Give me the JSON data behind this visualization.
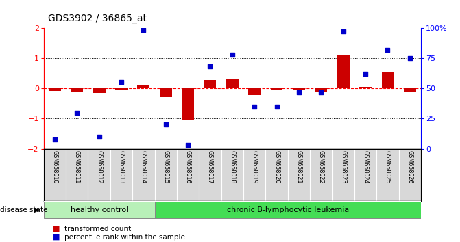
{
  "title": "GDS3902 / 36865_at",
  "samples": [
    "GSM658010",
    "GSM658011",
    "GSM658012",
    "GSM658013",
    "GSM658014",
    "GSM658015",
    "GSM658016",
    "GSM658017",
    "GSM658018",
    "GSM658019",
    "GSM658020",
    "GSM658021",
    "GSM658022",
    "GSM658023",
    "GSM658024",
    "GSM658025",
    "GSM658026"
  ],
  "transformed_count": [
    -0.08,
    -0.13,
    -0.15,
    -0.04,
    0.1,
    -0.3,
    -1.05,
    0.28,
    0.32,
    -0.22,
    -0.04,
    -0.04,
    -0.1,
    1.08,
    0.05,
    0.55,
    -0.12
  ],
  "percentile_rank": [
    8,
    30,
    10,
    55,
    98,
    20,
    3,
    68,
    78,
    35,
    35,
    47,
    47,
    97,
    62,
    82,
    75
  ],
  "split_after_index": 4,
  "group_labels": [
    "healthy control",
    "chronic B-lymphocytic leukemia"
  ],
  "group_color_healthy": "#b8f0b8",
  "group_color_leukemia": "#44dd55",
  "bar_color": "#cc0000",
  "dot_color": "#0000cc",
  "ylim_left": [
    -2.0,
    2.0
  ],
  "ylim_right": [
    0,
    100
  ],
  "yticks_left": [
    -2,
    -1,
    0,
    1,
    2
  ],
  "yticks_right": [
    0,
    25,
    50,
    75,
    100
  ],
  "ytick_labels_right": [
    "0",
    "25",
    "50",
    "75",
    "100%"
  ],
  "legend_items": [
    "transformed count",
    "percentile rank within the sample"
  ],
  "disease_state_label": "disease state"
}
